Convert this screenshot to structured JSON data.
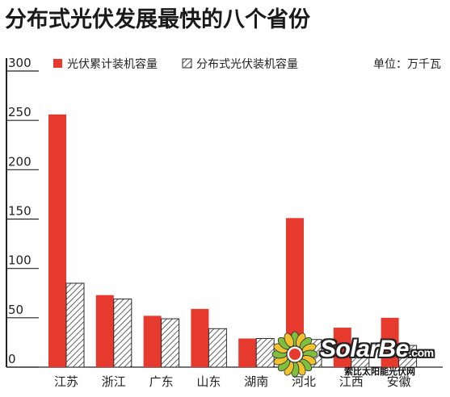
{
  "title": "分布式光伏发展最快的八个省份",
  "unit_label": "单位：万千瓦",
  "colors": {
    "primary": "#e63a2e",
    "hatch": "#3a3a3a",
    "axis": "#222222"
  },
  "watermark": {
    "brand": "SolarBe",
    "domain_suffix": ".com",
    "subtitle": "索比太阳能光伏网",
    "logo_icon": "sunflower-logo-icon"
  },
  "chart_data": {
    "type": "bar",
    "categories": [
      "江苏",
      "浙江",
      "广东",
      "山东",
      "湖南",
      "河北",
      "江西",
      "安徽"
    ],
    "series": [
      {
        "name": "光伏累计装机容量",
        "style": "solid-red",
        "values": [
          256,
          73,
          52,
          59,
          29,
          151,
          40,
          50
        ]
      },
      {
        "name": "分布式光伏装机容量",
        "style": "hatched",
        "values": [
          85,
          69,
          49,
          39,
          29,
          28,
          23,
          22
        ]
      }
    ],
    "yticks": [
      0,
      50,
      100,
      150,
      200,
      250,
      300
    ],
    "ylim": [
      0,
      300
    ],
    "grid": false,
    "legend_position": "top-left"
  }
}
